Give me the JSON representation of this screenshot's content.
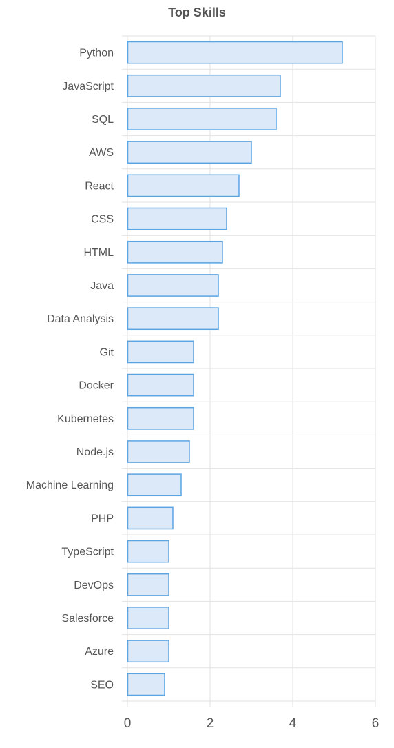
{
  "chart_data": {
    "type": "bar",
    "orientation": "horizontal",
    "title": "Top Skills",
    "xlabel": "",
    "ylabel": "",
    "xlim": [
      0,
      6
    ],
    "x_ticks": [
      "0",
      "2",
      "4",
      "6"
    ],
    "grid": true,
    "legend": "none",
    "categories": [
      "Python",
      "JavaScript",
      "SQL",
      "AWS",
      "React",
      "CSS",
      "HTML",
      "Java",
      "Data Analysis",
      "Git",
      "Docker",
      "Kubernetes",
      "Node.js",
      "Machine Learning",
      "PHP",
      "TypeScript",
      "DevOps",
      "Salesforce",
      "Azure",
      "SEO"
    ],
    "values": [
      5.2,
      3.7,
      3.6,
      3.0,
      2.7,
      2.4,
      2.3,
      2.2,
      2.2,
      1.6,
      1.6,
      1.6,
      1.5,
      1.3,
      1.1,
      1.0,
      1.0,
      1.0,
      1.0,
      0.9
    ]
  },
  "colors": {
    "bar_fill": "#dce9f8",
    "bar_stroke": "#5ba4e2",
    "grid": "#e2e2e2",
    "text": "#555555"
  }
}
